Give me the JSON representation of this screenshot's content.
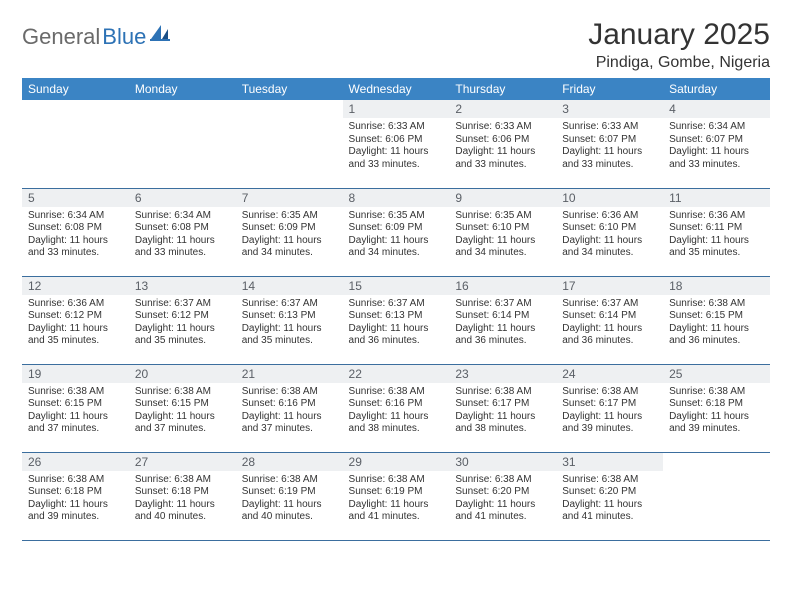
{
  "logo": {
    "part1": "General",
    "part2": "Blue"
  },
  "title": "January 2025",
  "location": "Pindiga, Gombe, Nigeria",
  "colors": {
    "header_bg": "#3b84c4",
    "header_text": "#ffffff",
    "daynum_bg": "#eef0f2",
    "daynum_text": "#5a5f66",
    "border": "#3b6e9e",
    "logo_gray": "#6a6a6a",
    "logo_blue": "#2d72b5"
  },
  "day_headers": [
    "Sunday",
    "Monday",
    "Tuesday",
    "Wednesday",
    "Thursday",
    "Friday",
    "Saturday"
  ],
  "weeks": [
    [
      null,
      null,
      null,
      {
        "num": "1",
        "sunrise": "6:33 AM",
        "sunset": "6:06 PM",
        "day_h": "11",
        "day_m": "33"
      },
      {
        "num": "2",
        "sunrise": "6:33 AM",
        "sunset": "6:06 PM",
        "day_h": "11",
        "day_m": "33"
      },
      {
        "num": "3",
        "sunrise": "6:33 AM",
        "sunset": "6:07 PM",
        "day_h": "11",
        "day_m": "33"
      },
      {
        "num": "4",
        "sunrise": "6:34 AM",
        "sunset": "6:07 PM",
        "day_h": "11",
        "day_m": "33"
      }
    ],
    [
      {
        "num": "5",
        "sunrise": "6:34 AM",
        "sunset": "6:08 PM",
        "day_h": "11",
        "day_m": "33"
      },
      {
        "num": "6",
        "sunrise": "6:34 AM",
        "sunset": "6:08 PM",
        "day_h": "11",
        "day_m": "33"
      },
      {
        "num": "7",
        "sunrise": "6:35 AM",
        "sunset": "6:09 PM",
        "day_h": "11",
        "day_m": "34"
      },
      {
        "num": "8",
        "sunrise": "6:35 AM",
        "sunset": "6:09 PM",
        "day_h": "11",
        "day_m": "34"
      },
      {
        "num": "9",
        "sunrise": "6:35 AM",
        "sunset": "6:10 PM",
        "day_h": "11",
        "day_m": "34"
      },
      {
        "num": "10",
        "sunrise": "6:36 AM",
        "sunset": "6:10 PM",
        "day_h": "11",
        "day_m": "34"
      },
      {
        "num": "11",
        "sunrise": "6:36 AM",
        "sunset": "6:11 PM",
        "day_h": "11",
        "day_m": "35"
      }
    ],
    [
      {
        "num": "12",
        "sunrise": "6:36 AM",
        "sunset": "6:12 PM",
        "day_h": "11",
        "day_m": "35"
      },
      {
        "num": "13",
        "sunrise": "6:37 AM",
        "sunset": "6:12 PM",
        "day_h": "11",
        "day_m": "35"
      },
      {
        "num": "14",
        "sunrise": "6:37 AM",
        "sunset": "6:13 PM",
        "day_h": "11",
        "day_m": "35"
      },
      {
        "num": "15",
        "sunrise": "6:37 AM",
        "sunset": "6:13 PM",
        "day_h": "11",
        "day_m": "36"
      },
      {
        "num": "16",
        "sunrise": "6:37 AM",
        "sunset": "6:14 PM",
        "day_h": "11",
        "day_m": "36"
      },
      {
        "num": "17",
        "sunrise": "6:37 AM",
        "sunset": "6:14 PM",
        "day_h": "11",
        "day_m": "36"
      },
      {
        "num": "18",
        "sunrise": "6:38 AM",
        "sunset": "6:15 PM",
        "day_h": "11",
        "day_m": "36"
      }
    ],
    [
      {
        "num": "19",
        "sunrise": "6:38 AM",
        "sunset": "6:15 PM",
        "day_h": "11",
        "day_m": "37"
      },
      {
        "num": "20",
        "sunrise": "6:38 AM",
        "sunset": "6:15 PM",
        "day_h": "11",
        "day_m": "37"
      },
      {
        "num": "21",
        "sunrise": "6:38 AM",
        "sunset": "6:16 PM",
        "day_h": "11",
        "day_m": "37"
      },
      {
        "num": "22",
        "sunrise": "6:38 AM",
        "sunset": "6:16 PM",
        "day_h": "11",
        "day_m": "38"
      },
      {
        "num": "23",
        "sunrise": "6:38 AM",
        "sunset": "6:17 PM",
        "day_h": "11",
        "day_m": "38"
      },
      {
        "num": "24",
        "sunrise": "6:38 AM",
        "sunset": "6:17 PM",
        "day_h": "11",
        "day_m": "39"
      },
      {
        "num": "25",
        "sunrise": "6:38 AM",
        "sunset": "6:18 PM",
        "day_h": "11",
        "day_m": "39"
      }
    ],
    [
      {
        "num": "26",
        "sunrise": "6:38 AM",
        "sunset": "6:18 PM",
        "day_h": "11",
        "day_m": "39"
      },
      {
        "num": "27",
        "sunrise": "6:38 AM",
        "sunset": "6:18 PM",
        "day_h": "11",
        "day_m": "40"
      },
      {
        "num": "28",
        "sunrise": "6:38 AM",
        "sunset": "6:19 PM",
        "day_h": "11",
        "day_m": "40"
      },
      {
        "num": "29",
        "sunrise": "6:38 AM",
        "sunset": "6:19 PM",
        "day_h": "11",
        "day_m": "41"
      },
      {
        "num": "30",
        "sunrise": "6:38 AM",
        "sunset": "6:20 PM",
        "day_h": "11",
        "day_m": "41"
      },
      {
        "num": "31",
        "sunrise": "6:38 AM",
        "sunset": "6:20 PM",
        "day_h": "11",
        "day_m": "41"
      },
      null
    ]
  ],
  "labels": {
    "sunrise": "Sunrise:",
    "sunset": "Sunset:",
    "daylight_prefix": "Daylight:",
    "hours_word": "hours",
    "and_word": "and",
    "minutes_word": "minutes."
  }
}
